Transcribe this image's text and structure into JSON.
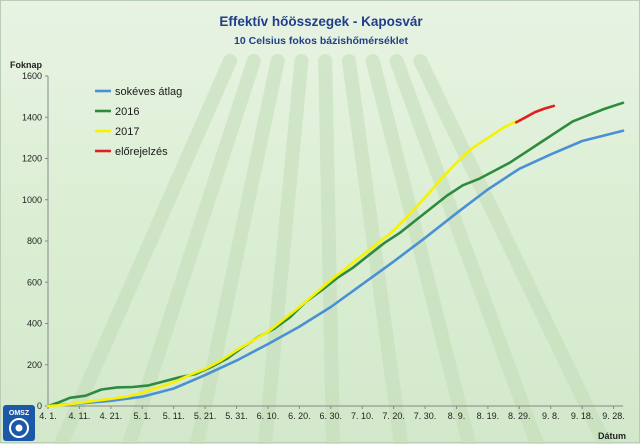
{
  "chart_data": {
    "type": "line",
    "title": "Effektív hőösszegek - Kaposvár",
    "subtitle": "10 Celsius fokos bázishőmérséklet",
    "ylabel": "Foknap",
    "xlabel": "Dátum",
    "ylim": [
      0,
      1600
    ],
    "yticks": [
      0,
      200,
      400,
      600,
      800,
      1000,
      1200,
      1400,
      1600
    ],
    "xlim": [
      0,
      183
    ],
    "x_ticks": [
      {
        "x": 0,
        "label": "4. 1."
      },
      {
        "x": 10,
        "label": "4. 11."
      },
      {
        "x": 20,
        "label": "4. 21."
      },
      {
        "x": 30,
        "label": "5. 1."
      },
      {
        "x": 40,
        "label": "5. 11."
      },
      {
        "x": 50,
        "label": "5. 21."
      },
      {
        "x": 60,
        "label": "5. 31."
      },
      {
        "x": 70,
        "label": "6. 10."
      },
      {
        "x": 80,
        "label": "6. 20."
      },
      {
        "x": 90,
        "label": "6. 30."
      },
      {
        "x": 100,
        "label": "7. 10."
      },
      {
        "x": 110,
        "label": "7. 20."
      },
      {
        "x": 120,
        "label": "7. 30."
      },
      {
        "x": 130,
        "label": "8. 9."
      },
      {
        "x": 140,
        "label": "8. 19."
      },
      {
        "x": 150,
        "label": "8. 29."
      },
      {
        "x": 160,
        "label": "9. 8."
      },
      {
        "x": 170,
        "label": "9. 18."
      },
      {
        "x": 180,
        "label": "9. 28."
      }
    ],
    "grid": false,
    "legend_position": "top-left",
    "series": [
      {
        "name": "sokéves átlag",
        "color": "#4a90d4",
        "x": [
          0,
          10,
          20,
          30,
          40,
          50,
          60,
          70,
          80,
          90,
          100,
          110,
          120,
          130,
          140,
          150,
          160,
          170,
          183
        ],
        "y": [
          0,
          12,
          25,
          45,
          85,
          150,
          220,
          300,
          385,
          480,
          590,
          700,
          815,
          935,
          1050,
          1150,
          1220,
          1285,
          1335
        ]
      },
      {
        "name": "2016",
        "color": "#2e8b3e",
        "x": [
          0,
          3,
          7,
          12,
          17,
          22,
          27,
          32,
          37,
          42,
          47,
          52,
          57,
          62,
          67,
          72,
          77,
          82,
          87,
          92,
          97,
          102,
          107,
          112,
          117,
          122,
          127,
          132,
          137,
          142,
          147,
          152,
          157,
          162,
          167,
          172,
          177,
          183
        ],
        "y": [
          0,
          15,
          40,
          50,
          80,
          90,
          92,
          100,
          120,
          140,
          155,
          190,
          230,
          285,
          335,
          375,
          430,
          505,
          560,
          620,
          670,
          730,
          790,
          840,
          900,
          960,
          1020,
          1070,
          1100,
          1140,
          1180,
          1230,
          1280,
          1330,
          1380,
          1410,
          1440,
          1470
        ]
      },
      {
        "name": "2017",
        "color": "#f7f200",
        "x": [
          0,
          5,
          10,
          15,
          20,
          25,
          30,
          35,
          40,
          45,
          50,
          55,
          60,
          65,
          70,
          75,
          80,
          85,
          90,
          95,
          100,
          105,
          110,
          115,
          120,
          125,
          130,
          135,
          140,
          145,
          149
        ],
        "y": [
          0,
          5,
          15,
          25,
          35,
          45,
          65,
          90,
          115,
          150,
          180,
          220,
          270,
          315,
          360,
          420,
          480,
          545,
          610,
          670,
          730,
          790,
          850,
          930,
          1010,
          1100,
          1180,
          1250,
          1300,
          1350,
          1380
        ]
      },
      {
        "name": "előrejelzés",
        "color": "#e02020",
        "x": [
          149,
          152,
          155,
          158,
          161
        ],
        "y": [
          1375,
          1400,
          1425,
          1442,
          1455
        ]
      }
    ]
  },
  "logo": {
    "text": "OMSZ"
  }
}
